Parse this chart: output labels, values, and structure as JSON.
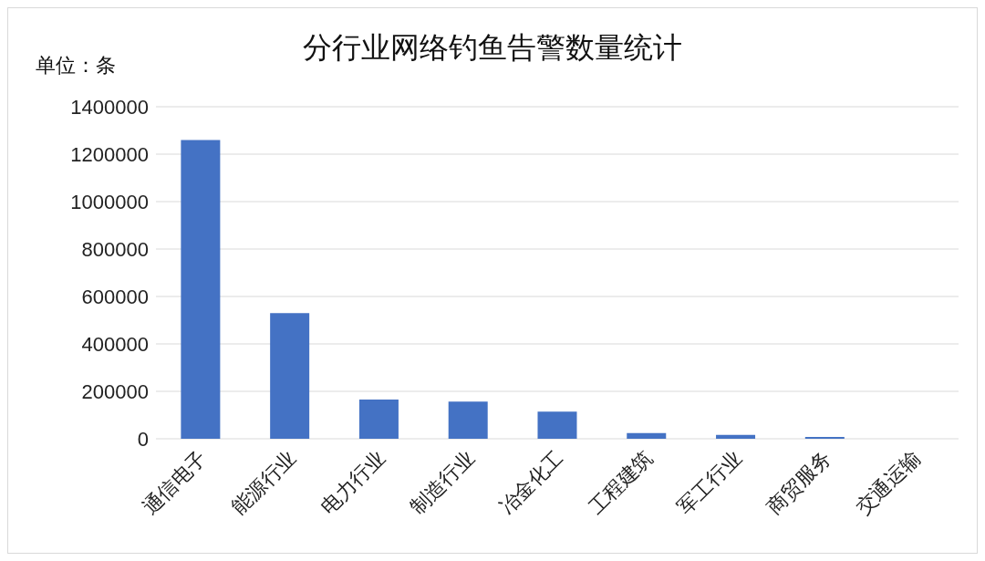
{
  "chart_data": {
    "type": "bar",
    "title": "分行业网络钓鱼告警数量统计",
    "annotations": [
      "单位：条"
    ],
    "categories": [
      "通信电子",
      "能源行业",
      "电力行业",
      "制造行业",
      "冶金化工",
      "工程建筑",
      "军工行业",
      "商贸服务",
      "交通运输"
    ],
    "values": [
      1260000,
      530000,
      165000,
      157000,
      114000,
      24000,
      16000,
      8000,
      null
    ],
    "color": "#4472c4",
    "ylim": [
      0,
      1400000
    ],
    "yticks": [
      0,
      200000,
      400000,
      600000,
      800000,
      1000000,
      1200000,
      1400000
    ],
    "grid": "y",
    "legend": false
  }
}
